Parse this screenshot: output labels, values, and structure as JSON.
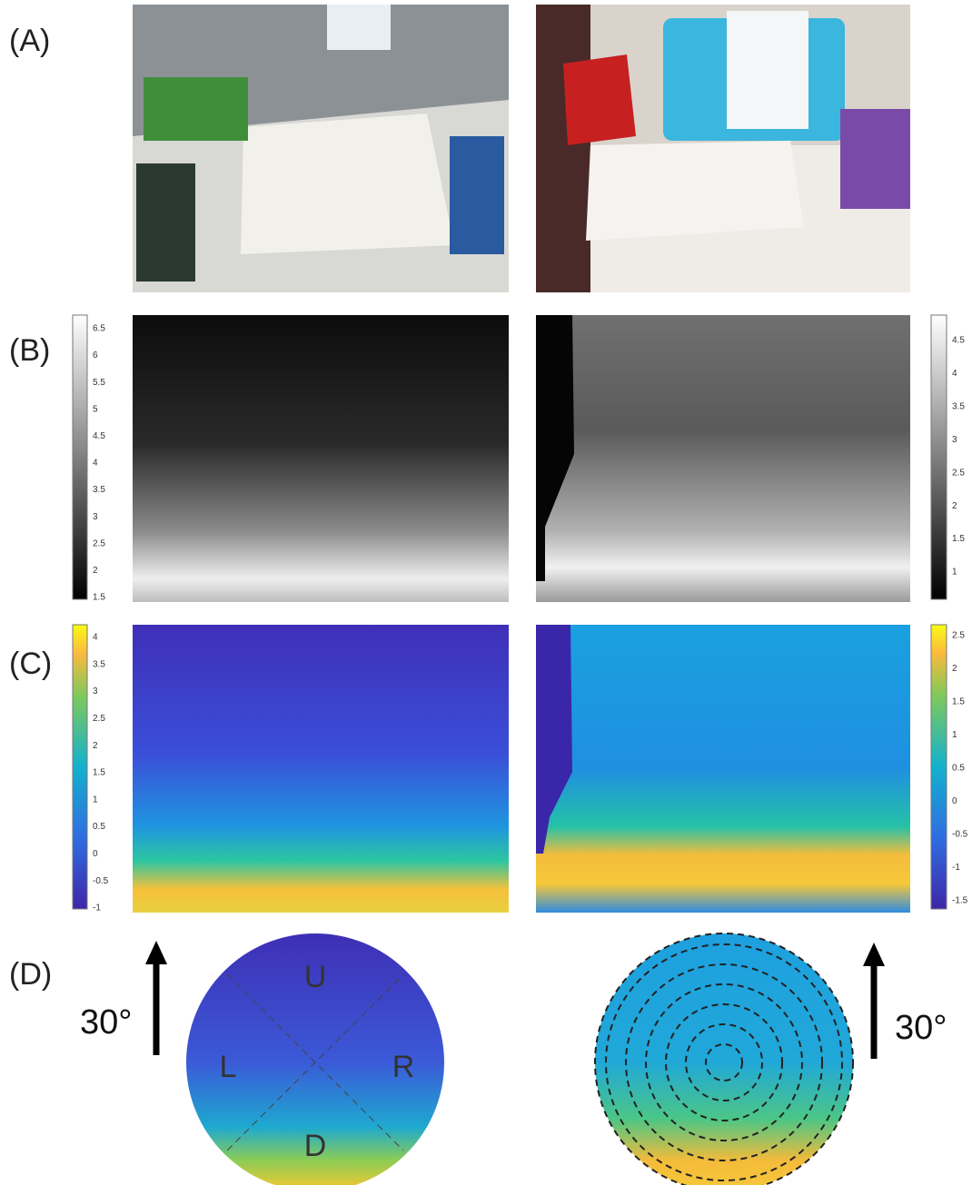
{
  "panels": [
    {
      "label": "(A)"
    },
    {
      "label": "(B)",
      "left_colorbar_ticks": [
        6.5,
        6,
        5.5,
        5,
        4.5,
        4,
        3.5,
        3,
        2.5,
        2,
        1.5
      ],
      "right_colorbar_ticks": [
        4.5,
        4,
        3.5,
        3,
        2.5,
        2,
        1.5,
        1
      ]
    },
    {
      "label": "(C)",
      "left_colorbar_ticks": [
        4,
        3.5,
        3,
        2.5,
        2,
        1.5,
        1,
        0.5,
        0,
        -0.5,
        -1
      ],
      "right_colorbar_ticks": [
        2.5,
        2,
        1.5,
        1,
        0.5,
        0,
        -0.5,
        -1,
        -1.5
      ]
    },
    {
      "label": "(D)",
      "left_angle": "30°",
      "right_angle": "30°",
      "regions": [
        "U",
        "L",
        "R",
        "D"
      ]
    }
  ]
}
